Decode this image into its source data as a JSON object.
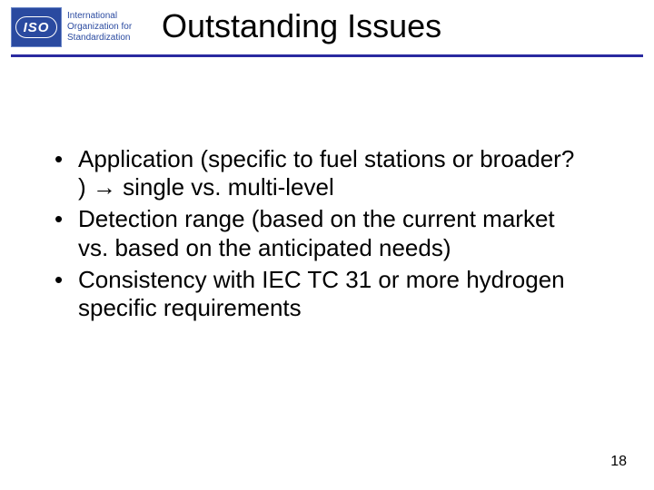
{
  "logo": {
    "badge_text": "ISO",
    "org_line1": "International",
    "org_line2": "Organization for",
    "org_line3": "Standardization",
    "badge_bg": "#2a4aa0",
    "org_text_color": "#2a4aa0"
  },
  "title": "Outstanding Issues",
  "title_fontsize": 36,
  "rule_color": "#2a2aa0",
  "bullets": [
    "Application (specific to fuel stations or broader? ) → single vs. multi-level",
    "Detection range (based on the current market vs. based on the anticipated needs)",
    "Consistency with IEC TC 31 or more hydrogen specific requirements"
  ],
  "bullet_fontsize": 26,
  "page_number": "18",
  "background_color": "#ffffff"
}
